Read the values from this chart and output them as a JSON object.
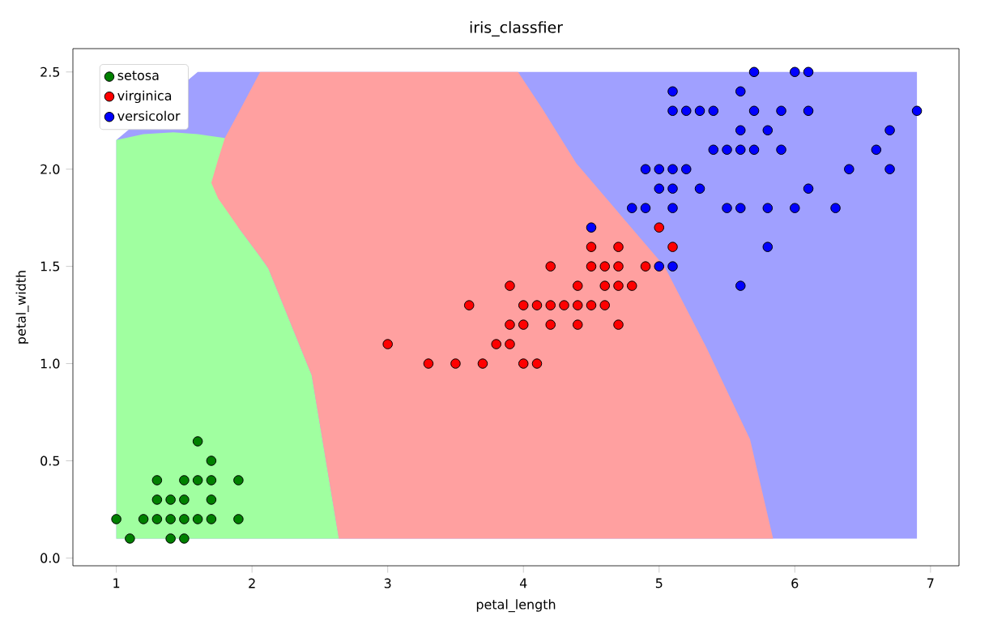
{
  "chart_data": {
    "type": "scatter",
    "title": "iris_classfier",
    "xlabel": "petal_length",
    "ylabel": "petal_width",
    "xlim": [
      0.68,
      7.21
    ],
    "ylim": [
      -0.04,
      2.62
    ],
    "xticks": [
      1,
      2,
      3,
      4,
      5,
      6,
      7
    ],
    "yticks": [
      {
        "value": 0,
        "label": "0.0"
      },
      {
        "value": 0.5,
        "label": "0.5"
      },
      {
        "value": 1,
        "label": "1.0"
      },
      {
        "value": 1.5,
        "label": "1.5"
      },
      {
        "value": 2,
        "label": "2.0"
      },
      {
        "value": 2.5,
        "label": "2.5"
      }
    ],
    "legend": "top left",
    "series": [
      {
        "type": "area",
        "marker": "none",
        "color": "#a0a0ff",
        "x": [
          1.0,
          1.0,
          1.6,
          6.9,
          6.9
        ],
        "values": [
          0.1,
          2.15,
          2.5,
          2.5,
          0.1
        ]
      },
      {
        "type": "area",
        "marker": "none",
        "color": "#a0ffa0",
        "x": [
          1.0,
          1.2,
          1.42,
          1.6,
          1.8,
          1.9,
          2.06,
          2.12,
          2.44,
          2.64,
          1.0
        ],
        "values": [
          2.15,
          2.18,
          2.19,
          2.18,
          2.16,
          1.7,
          1.55,
          1.49,
          0.94,
          0.1,
          0.1
        ]
      },
      {
        "type": "area",
        "marker": "none",
        "color": "#ffa0a0",
        "x": [
          1.7,
          1.75,
          1.8,
          1.9,
          2.06,
          3.96,
          4.14,
          4.39,
          5.04,
          5.35,
          5.67,
          5.84,
          2.64,
          2.44,
          2.12,
          2.06,
          1.9,
          1.8,
          1.75
        ],
        "values": [
          1.93,
          2.05,
          2.16,
          2.29,
          2.5,
          2.5,
          2.31,
          2.03,
          1.5,
          1.08,
          0.61,
          0.1,
          0.1,
          0.94,
          1.49,
          1.55,
          1.7,
          1.8,
          1.85
        ]
      },
      {
        "name": "setosa",
        "marker": "circle",
        "color": "#008000",
        "x": [
          1.6,
          1.7,
          1.3,
          1.5,
          1.6,
          1.7,
          1.9,
          1.3,
          1.4,
          1.5,
          1.7,
          1.0,
          1.2,
          1.3,
          1.4,
          1.5,
          1.6,
          1.7,
          1.9,
          1.1,
          1.4,
          1.5
        ],
        "values": [
          0.6,
          0.5,
          0.4,
          0.4,
          0.4,
          0.4,
          0.4,
          0.3,
          0.3,
          0.3,
          0.3,
          0.2,
          0.2,
          0.2,
          0.2,
          0.2,
          0.2,
          0.2,
          0.2,
          0.1,
          0.1,
          0.1
        ]
      },
      {
        "name": "virginica",
        "marker": "circle",
        "color": "#ff0000",
        "x": [
          5.0,
          4.5,
          4.7,
          5.1,
          4.2,
          4.5,
          4.6,
          4.7,
          4.9,
          3.9,
          4.4,
          4.6,
          4.7,
          4.8,
          3.6,
          4.0,
          4.1,
          4.2,
          4.3,
          4.4,
          4.5,
          4.6,
          3.9,
          4.0,
          4.2,
          4.4,
          4.7,
          3.0,
          3.8,
          3.9,
          3.3,
          3.5,
          3.7,
          4.0,
          4.1
        ],
        "values": [
          1.7,
          1.6,
          1.6,
          1.6,
          1.5,
          1.5,
          1.5,
          1.5,
          1.5,
          1.4,
          1.4,
          1.4,
          1.4,
          1.4,
          1.3,
          1.3,
          1.3,
          1.3,
          1.3,
          1.3,
          1.3,
          1.3,
          1.2,
          1.2,
          1.2,
          1.2,
          1.2,
          1.1,
          1.1,
          1.1,
          1.0,
          1.0,
          1.0,
          1.0,
          1.0
        ]
      },
      {
        "name": "versicolor",
        "marker": "circle",
        "color": "#0000ff",
        "x": [
          5.7,
          6.0,
          6.1,
          5.1,
          5.6,
          5.1,
          5.2,
          5.3,
          5.4,
          5.7,
          5.9,
          6.1,
          6.9,
          5.6,
          5.8,
          6.7,
          5.4,
          5.5,
          5.6,
          5.7,
          5.9,
          6.6,
          4.9,
          5.0,
          5.1,
          5.2,
          6.4,
          6.7,
          5.0,
          5.1,
          5.3,
          6.1,
          4.8,
          4.9,
          5.1,
          5.5,
          5.6,
          5.8,
          6.0,
          6.3,
          4.5,
          5.8,
          5.0,
          5.1,
          5.6
        ],
        "values": [
          2.5,
          2.5,
          2.5,
          2.4,
          2.4,
          2.3,
          2.3,
          2.3,
          2.3,
          2.3,
          2.3,
          2.3,
          2.3,
          2.2,
          2.2,
          2.2,
          2.1,
          2.1,
          2.1,
          2.1,
          2.1,
          2.1,
          2.0,
          2.0,
          2.0,
          2.0,
          2.0,
          2.0,
          1.9,
          1.9,
          1.9,
          1.9,
          1.8,
          1.8,
          1.8,
          1.8,
          1.8,
          1.8,
          1.8,
          1.8,
          1.7,
          1.6,
          1.5,
          1.5,
          1.4
        ]
      }
    ]
  }
}
